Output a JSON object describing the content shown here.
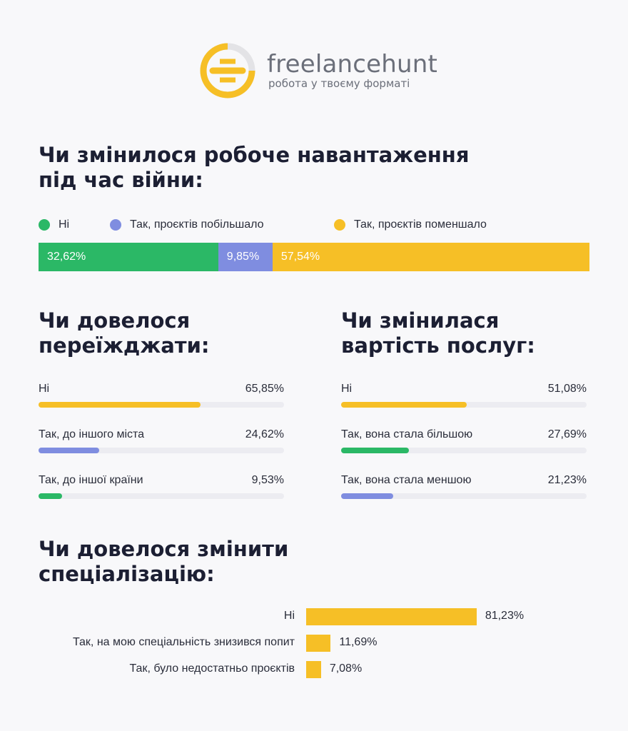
{
  "brand": {
    "name": "freelancehunt",
    "tagline": "робота у твоєму форматі"
  },
  "colors": {
    "green": "#2bb866",
    "blue": "#7f8de0",
    "yellow": "#f6bf26",
    "text": "#1c1f33",
    "track": "#ececf1"
  },
  "workload": {
    "title": "Чи змінилося робоче навантаження\nпід час війни:",
    "legend": [
      "Ні",
      "Так, проєктів побільшало",
      "Так, проєктів поменшало"
    ],
    "labels": [
      "32,62%",
      "9,85%",
      "57,54%"
    ]
  },
  "moving": {
    "title": "Чи довелося\nпереїжджати:",
    "items": [
      {
        "label": "Ні",
        "value_text": "65,85%"
      },
      {
        "label": "Так, до іншого міста",
        "value_text": "24,62%"
      },
      {
        "label": "Так, до іншої країни",
        "value_text": "9,53%"
      }
    ]
  },
  "pricing": {
    "title": "Чи змінилася\nвартість послуг:",
    "items": [
      {
        "label": "Ні",
        "value_text": "51,08%"
      },
      {
        "label": "Так, вона стала більшою",
        "value_text": "27,69%"
      },
      {
        "label": "Так, вона стала меншою",
        "value_text": "21,23%"
      }
    ]
  },
  "specialization": {
    "title": "Чи довелося змінити\nспеціалізацію:",
    "items": [
      {
        "label": "Ні",
        "value_text": "81,23%"
      },
      {
        "label": "Так, на мою спеціальність знизився попит",
        "value_text": "11,69%"
      },
      {
        "label": "Так, було недостатньо проєктів",
        "value_text": "7,08%"
      }
    ]
  },
  "chart_data": [
    {
      "type": "bar",
      "title": "Чи змінилося робоче навантаження під час війни:",
      "stacked": true,
      "orientation": "horizontal",
      "categories": [
        "Ні",
        "Так, проєктів побільшало",
        "Так, проєктів поменшало"
      ],
      "values": [
        32.62,
        9.85,
        57.54
      ],
      "colors": [
        "#2bb866",
        "#7f8de0",
        "#f6bf26"
      ],
      "legend_position": "top"
    },
    {
      "type": "bar",
      "title": "Чи довелося переїжджати:",
      "orientation": "horizontal",
      "categories": [
        "Ні",
        "Так, до іншого міста",
        "Так, до іншої країни"
      ],
      "values": [
        65.85,
        24.62,
        9.53
      ],
      "colors": [
        "#f6bf26",
        "#7f8de0",
        "#2bb866"
      ]
    },
    {
      "type": "bar",
      "title": "Чи змінилася вартість послуг:",
      "orientation": "horizontal",
      "categories": [
        "Ні",
        "Так, вона стала більшою",
        "Так, вона стала меншою"
      ],
      "values": [
        51.08,
        27.69,
        21.23
      ],
      "colors": [
        "#f6bf26",
        "#2bb866",
        "#7f8de0"
      ]
    },
    {
      "type": "bar",
      "title": "Чи довелося змінити спеціалізацію:",
      "orientation": "horizontal",
      "categories": [
        "Ні",
        "Так, на мою спеціальність знизився попит",
        "Так, було недостатньо проєктів"
      ],
      "values": [
        81.23,
        11.69,
        7.08
      ],
      "colors": [
        "#f6bf26",
        "#f6bf26",
        "#f6bf26"
      ]
    }
  ]
}
